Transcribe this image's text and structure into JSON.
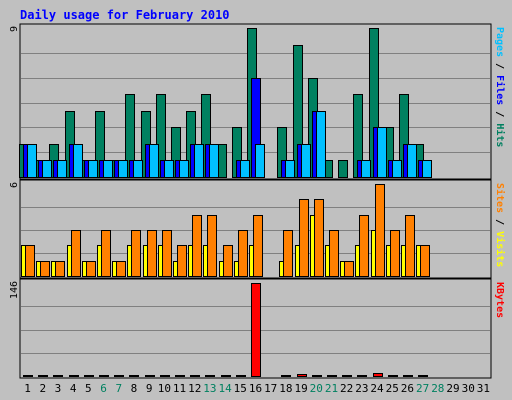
{
  "chart_data": {
    "type": "bar",
    "title": "Daily usage for February 2010",
    "categories": [
      "1",
      "2",
      "3",
      "4",
      "5",
      "6",
      "7",
      "8",
      "9",
      "10",
      "11",
      "12",
      "13",
      "14",
      "15",
      "16",
      "17",
      "18",
      "19",
      "20",
      "21",
      "22",
      "23",
      "24",
      "25",
      "26",
      "27",
      "28",
      "29",
      "30",
      "31"
    ],
    "weekend_days": [
      "6",
      "7",
      "13",
      "14",
      "20",
      "21",
      "27",
      "28"
    ],
    "panels": [
      {
        "id": "hits-files-pages",
        "max_label": "9",
        "ylim": [
          0,
          9
        ],
        "side_labels": [
          {
            "text": "Pages",
            "color": "#00c0ff"
          },
          {
            "text": " / ",
            "color": "#000000"
          },
          {
            "text": "Files",
            "color": "#0000ff"
          },
          {
            "text": " / ",
            "color": "#000000"
          },
          {
            "text": "Hits",
            "color": "#008060"
          }
        ],
        "series": [
          {
            "name": "Hits",
            "color": "#008060",
            "values": [
              2,
              1,
              2,
              4,
              1,
              4,
              1,
              5,
              4,
              5,
              3,
              4,
              5,
              2,
              3,
              9,
              0,
              3,
              8,
              6,
              1,
              1,
              5,
              9,
              3,
              5,
              2,
              0,
              0,
              0,
              0
            ]
          },
          {
            "name": "Files",
            "color": "#0000ff",
            "values": [
              2,
              1,
              1,
              2,
              1,
              1,
              1,
              1,
              2,
              1,
              1,
              2,
              2,
              0,
              1,
              6,
              0,
              1,
              2,
              4,
              0,
              0,
              1,
              3,
              1,
              2,
              1,
              0,
              0,
              0,
              0
            ]
          },
          {
            "name": "Pages",
            "color": "#00c0ff",
            "values": [
              2,
              1,
              1,
              2,
              1,
              1,
              1,
              1,
              2,
              1,
              1,
              2,
              2,
              0,
              1,
              2,
              0,
              1,
              2,
              4,
              0,
              0,
              1,
              3,
              1,
              2,
              1,
              0,
              0,
              0,
              0
            ]
          }
        ]
      },
      {
        "id": "visits-sites",
        "max_label": "6",
        "ylim": [
          0,
          6
        ],
        "side_labels": [
          {
            "text": "Sites",
            "color": "#ff8000"
          },
          {
            "text": " / ",
            "color": "#000000"
          },
          {
            "text": "Visits",
            "color": "#ffff00"
          }
        ],
        "series": [
          {
            "name": "Visits",
            "color": "#ffff00",
            "values": [
              2,
              1,
              1,
              2,
              1,
              2,
              1,
              2,
              2,
              2,
              1,
              2,
              2,
              1,
              1,
              2,
              0,
              1,
              2,
              4,
              2,
              1,
              2,
              3,
              2,
              2,
              2,
              0,
              0,
              0,
              0
            ]
          },
          {
            "name": "Sites",
            "color": "#ff8000",
            "values": [
              2,
              1,
              1,
              3,
              1,
              3,
              1,
              3,
              3,
              3,
              2,
              4,
              4,
              2,
              3,
              4,
              0,
              3,
              5,
              5,
              3,
              1,
              4,
              6,
              3,
              4,
              2,
              0,
              0,
              0,
              0
            ]
          }
        ]
      },
      {
        "id": "kbytes",
        "max_label": "146",
        "ylim": [
          0,
          146
        ],
        "side_labels": [
          {
            "text": "KBytes",
            "color": "#ff0000"
          }
        ],
        "series": [
          {
            "name": "KBytes",
            "color": "#ff0000",
            "values": [
              1,
              1,
              1,
              1,
              1,
              1,
              1,
              1,
              1,
              1,
              1,
              1,
              1,
              1,
              1,
              146,
              0,
              1,
              3,
              2,
              1,
              1,
              1,
              4,
              1,
              1,
              1,
              0,
              0,
              0,
              0
            ]
          }
        ]
      }
    ],
    "colors": {
      "background": "#c0c0c0",
      "title": "#0000ff",
      "axis_text": "#000000",
      "weekend_text": "#008060",
      "bar_outline": "#000000"
    }
  }
}
